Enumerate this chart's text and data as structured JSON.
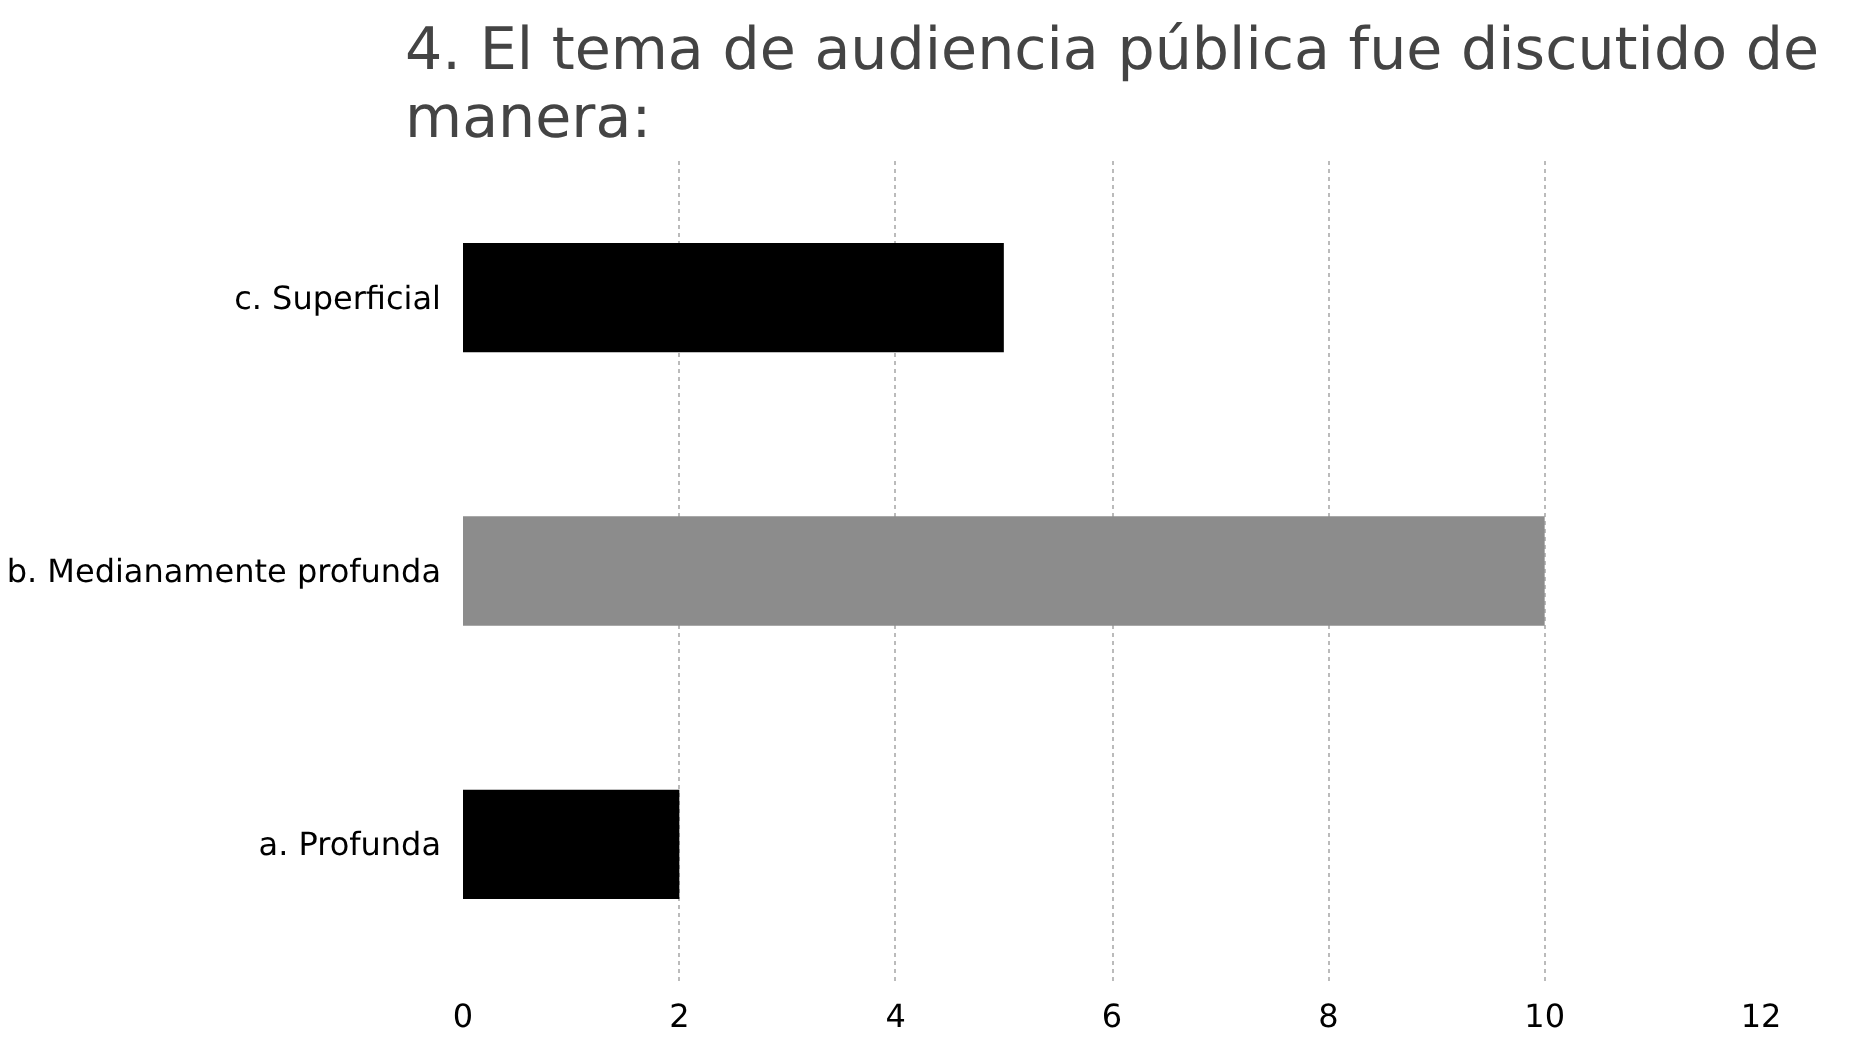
{
  "chart_data": {
    "type": "bar",
    "orientation": "horizontal",
    "title": "4. El tema de audiencia pública fue discutido de manera:",
    "categories": [
      "c. Superficial",
      "b. Medianamente profunda",
      "a. Profunda"
    ],
    "values": [
      5,
      10,
      2
    ],
    "colors": [
      "#000000",
      "#8c8c8c",
      "#000000"
    ],
    "xlim": [
      0,
      12
    ],
    "xticks": [
      0,
      2,
      4,
      6,
      8,
      10,
      12
    ],
    "grid": "x"
  }
}
